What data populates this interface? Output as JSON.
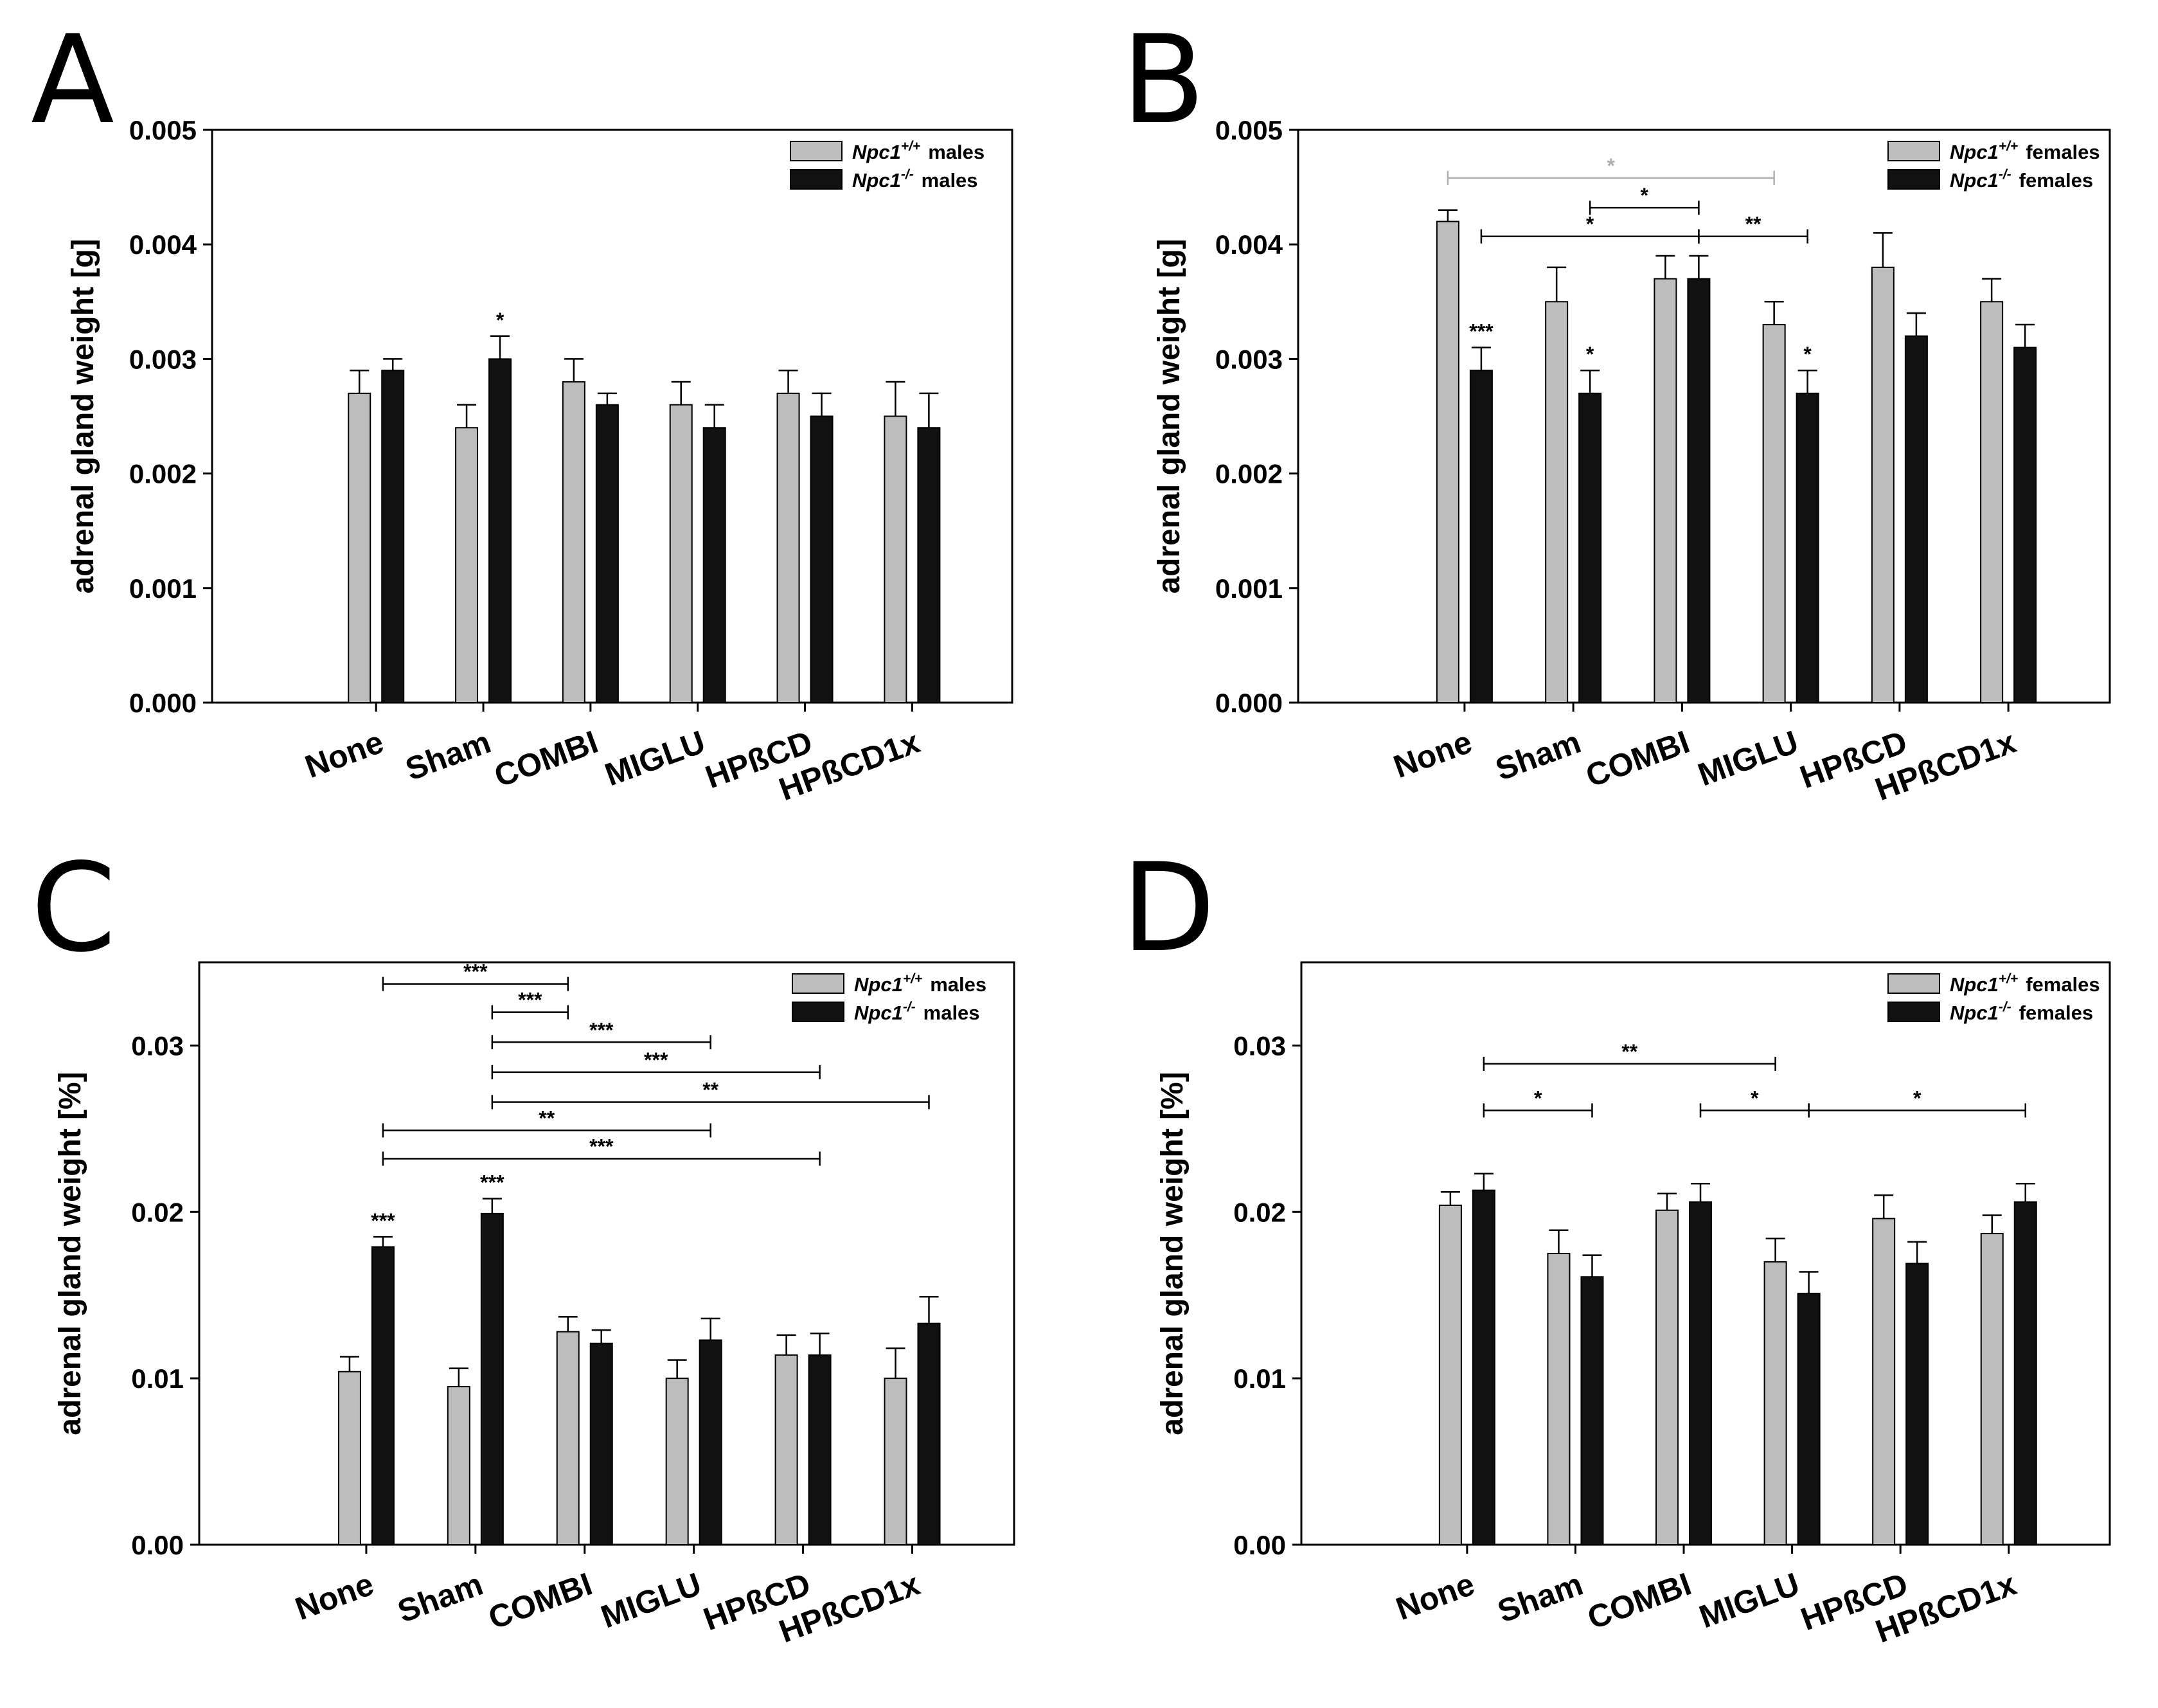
{
  "chart_data": [
    {
      "panel": "A",
      "type": "bar",
      "categories": [
        "None",
        "Sham",
        "COMBI",
        "MIGLU",
        "HPßCD",
        "HPßCD1x"
      ],
      "ylabel": "adrenal gland weight [g]",
      "ylim": [
        0,
        0.005
      ],
      "yticks": [
        "0.000",
        "0.001",
        "0.002",
        "0.003",
        "0.004",
        "0.005"
      ],
      "ytick_values": [
        0,
        0.001,
        0.002,
        0.003,
        0.004,
        0.005
      ],
      "legend_position": "top-right",
      "series": [
        {
          "name": "Npc1",
          "superscript": "+/+",
          "suffix": "males",
          "color": "#bdbdbd",
          "values": [
            0.0027,
            0.0024,
            0.0028,
            0.0026,
            0.0027,
            0.0025
          ],
          "errors": [
            0.0002,
            0.0002,
            0.0002,
            0.0002,
            0.0002,
            0.0003
          ]
        },
        {
          "name": "Npc1",
          "superscript": "-/-",
          "suffix": "males",
          "color": "#111111",
          "values": [
            0.0029,
            0.003,
            0.0026,
            0.0024,
            0.0025,
            0.0024
          ],
          "errors": [
            0.0001,
            0.0002,
            0.0001,
            0.0002,
            0.0002,
            0.0003
          ]
        }
      ],
      "bar_annotations": [
        {
          "category": 1,
          "series": 1,
          "text": "*"
        }
      ],
      "brackets": []
    },
    {
      "panel": "B",
      "type": "bar",
      "categories": [
        "None",
        "Sham",
        "COMBI",
        "MIGLU",
        "HPßCD",
        "HPßCD1x"
      ],
      "ylabel": "adrenal gland weight [g]",
      "ylim": [
        0,
        0.005
      ],
      "yticks": [
        "0.000",
        "0.001",
        "0.002",
        "0.003",
        "0.004",
        "0.005"
      ],
      "ytick_values": [
        0,
        0.001,
        0.002,
        0.003,
        0.004,
        0.005
      ],
      "legend_position": "top-right",
      "series": [
        {
          "name": "Npc1",
          "superscript": "+/+",
          "suffix": "females",
          "color": "#bdbdbd",
          "values": [
            0.0042,
            0.0035,
            0.0037,
            0.0033,
            0.0038,
            0.0035
          ],
          "errors": [
            0.0001,
            0.0003,
            0.0002,
            0.0002,
            0.0003,
            0.0002
          ]
        },
        {
          "name": "Npc1",
          "superscript": "-/-",
          "suffix": "females",
          "color": "#111111",
          "values": [
            0.0029,
            0.0027,
            0.0037,
            0.0027,
            0.0032,
            0.0031
          ],
          "errors": [
            0.0002,
            0.0002,
            0.0002,
            0.0002,
            0.0002,
            0.0002
          ]
        }
      ],
      "bar_annotations": [
        {
          "category": 0,
          "series": 1,
          "text": "***"
        },
        {
          "category": 1,
          "series": 1,
          "text": "*"
        },
        {
          "category": 3,
          "series": 1,
          "text": "*"
        }
      ],
      "brackets": [
        {
          "from_cat": 0,
          "from_series": 0,
          "to_cat": 3,
          "to_series": 0,
          "y": 0.00458,
          "text": "*",
          "color": "#b0b0b0"
        },
        {
          "from_cat": 1,
          "from_series": 1,
          "to_cat": 2,
          "to_series": 1,
          "y": 0.00432,
          "text": "*",
          "color": "#000000"
        },
        {
          "from_cat": 0,
          "from_series": 1,
          "to_cat": 2,
          "to_series": 1,
          "y": 0.00407,
          "text": "*",
          "color": "#000000"
        },
        {
          "from_cat": 2,
          "from_series": 1,
          "to_cat": 3,
          "to_series": 1,
          "y": 0.00407,
          "text": "**",
          "color": "#000000"
        }
      ]
    },
    {
      "panel": "C",
      "type": "bar",
      "categories": [
        "None",
        "Sham",
        "COMBI",
        "MIGLU",
        "HPßCD",
        "HPßCD1x"
      ],
      "ylabel": "adrenal gland weight [%]",
      "ylim": [
        0,
        0.035
      ],
      "yticks": [
        "0.00",
        "0.01",
        "0.02",
        "0.03"
      ],
      "ytick_values": [
        0,
        0.01,
        0.02,
        0.03
      ],
      "legend_position": "top-right",
      "series": [
        {
          "name": "Npc1",
          "superscript": "+/+",
          "suffix": "males",
          "color": "#bdbdbd",
          "values": [
            0.0104,
            0.0095,
            0.0128,
            0.01,
            0.0114,
            0.01
          ],
          "errors": [
            0.0009,
            0.0011,
            0.0009,
            0.0011,
            0.0012,
            0.0018
          ]
        },
        {
          "name": "Npc1",
          "superscript": "-/-",
          "suffix": "males",
          "color": "#111111",
          "values": [
            0.0179,
            0.0199,
            0.0121,
            0.0123,
            0.0114,
            0.0133
          ],
          "errors": [
            0.0006,
            0.0009,
            0.0008,
            0.0013,
            0.0013,
            0.0016
          ]
        }
      ],
      "bar_annotations": [
        {
          "category": 0,
          "series": 1,
          "text": "***"
        },
        {
          "category": 1,
          "series": 1,
          "text": "***"
        }
      ],
      "brackets": [
        {
          "from_cat": 0,
          "from_series": 1,
          "to_cat": 2,
          "to_series": 0,
          "y": 0.0337,
          "text": "***",
          "color": "#000000"
        },
        {
          "from_cat": 1,
          "from_series": 1,
          "to_cat": 2,
          "to_series": 0,
          "y": 0.032,
          "text": "***",
          "color": "#000000"
        },
        {
          "from_cat": 1,
          "from_series": 1,
          "to_cat": 3,
          "to_series": 1,
          "y": 0.0302,
          "text": "***",
          "color": "#000000"
        },
        {
          "from_cat": 1,
          "from_series": 1,
          "to_cat": 4,
          "to_series": 1,
          "y": 0.0284,
          "text": "***",
          "color": "#000000"
        },
        {
          "from_cat": 1,
          "from_series": 1,
          "to_cat": 5,
          "to_series": 1,
          "y": 0.0266,
          "text": "**",
          "color": "#000000"
        },
        {
          "from_cat": 0,
          "from_series": 1,
          "to_cat": 3,
          "to_series": 1,
          "y": 0.0249,
          "text": "**",
          "color": "#000000"
        },
        {
          "from_cat": 0,
          "from_series": 1,
          "to_cat": 4,
          "to_series": 1,
          "y": 0.0232,
          "text": "***",
          "color": "#000000"
        }
      ]
    },
    {
      "panel": "D",
      "type": "bar",
      "categories": [
        "None",
        "Sham",
        "COMBI",
        "MIGLU",
        "HPßCD",
        "HPßCD1x"
      ],
      "ylabel": "adrenal gland weight [%]",
      "ylim": [
        0,
        0.035
      ],
      "yticks": [
        "0.00",
        "0.01",
        "0.02",
        "0.03"
      ],
      "ytick_values": [
        0,
        0.01,
        0.02,
        0.03
      ],
      "legend_position": "top-right",
      "series": [
        {
          "name": "Npc1",
          "superscript": "+/+",
          "suffix": "females",
          "color": "#bdbdbd",
          "values": [
            0.0204,
            0.0175,
            0.0201,
            0.017,
            0.0196,
            0.0187
          ],
          "errors": [
            0.0008,
            0.0014,
            0.001,
            0.0014,
            0.0014,
            0.0011
          ]
        },
        {
          "name": "Npc1",
          "superscript": "-/-",
          "suffix": "females",
          "color": "#111111",
          "values": [
            0.0213,
            0.0161,
            0.0206,
            0.0151,
            0.0169,
            0.0206
          ],
          "errors": [
            0.001,
            0.0013,
            0.0011,
            0.0013,
            0.0013,
            0.0011
          ]
        }
      ],
      "bar_annotations": [],
      "brackets": [
        {
          "from_cat": 0,
          "from_series": 1,
          "to_cat": 3,
          "to_series": 0,
          "y": 0.0289,
          "text": "**",
          "color": "#000000"
        },
        {
          "from_cat": 0,
          "from_series": 1,
          "to_cat": 1,
          "to_series": 1,
          "y": 0.0261,
          "text": "*",
          "color": "#000000"
        },
        {
          "from_cat": 2,
          "from_series": 1,
          "to_cat": 3,
          "to_series": 1,
          "y": 0.0261,
          "text": "*",
          "color": "#000000"
        },
        {
          "from_cat": 3,
          "from_series": 1,
          "to_cat": 5,
          "to_series": 1,
          "y": 0.0261,
          "text": "*",
          "color": "#000000"
        }
      ]
    }
  ]
}
